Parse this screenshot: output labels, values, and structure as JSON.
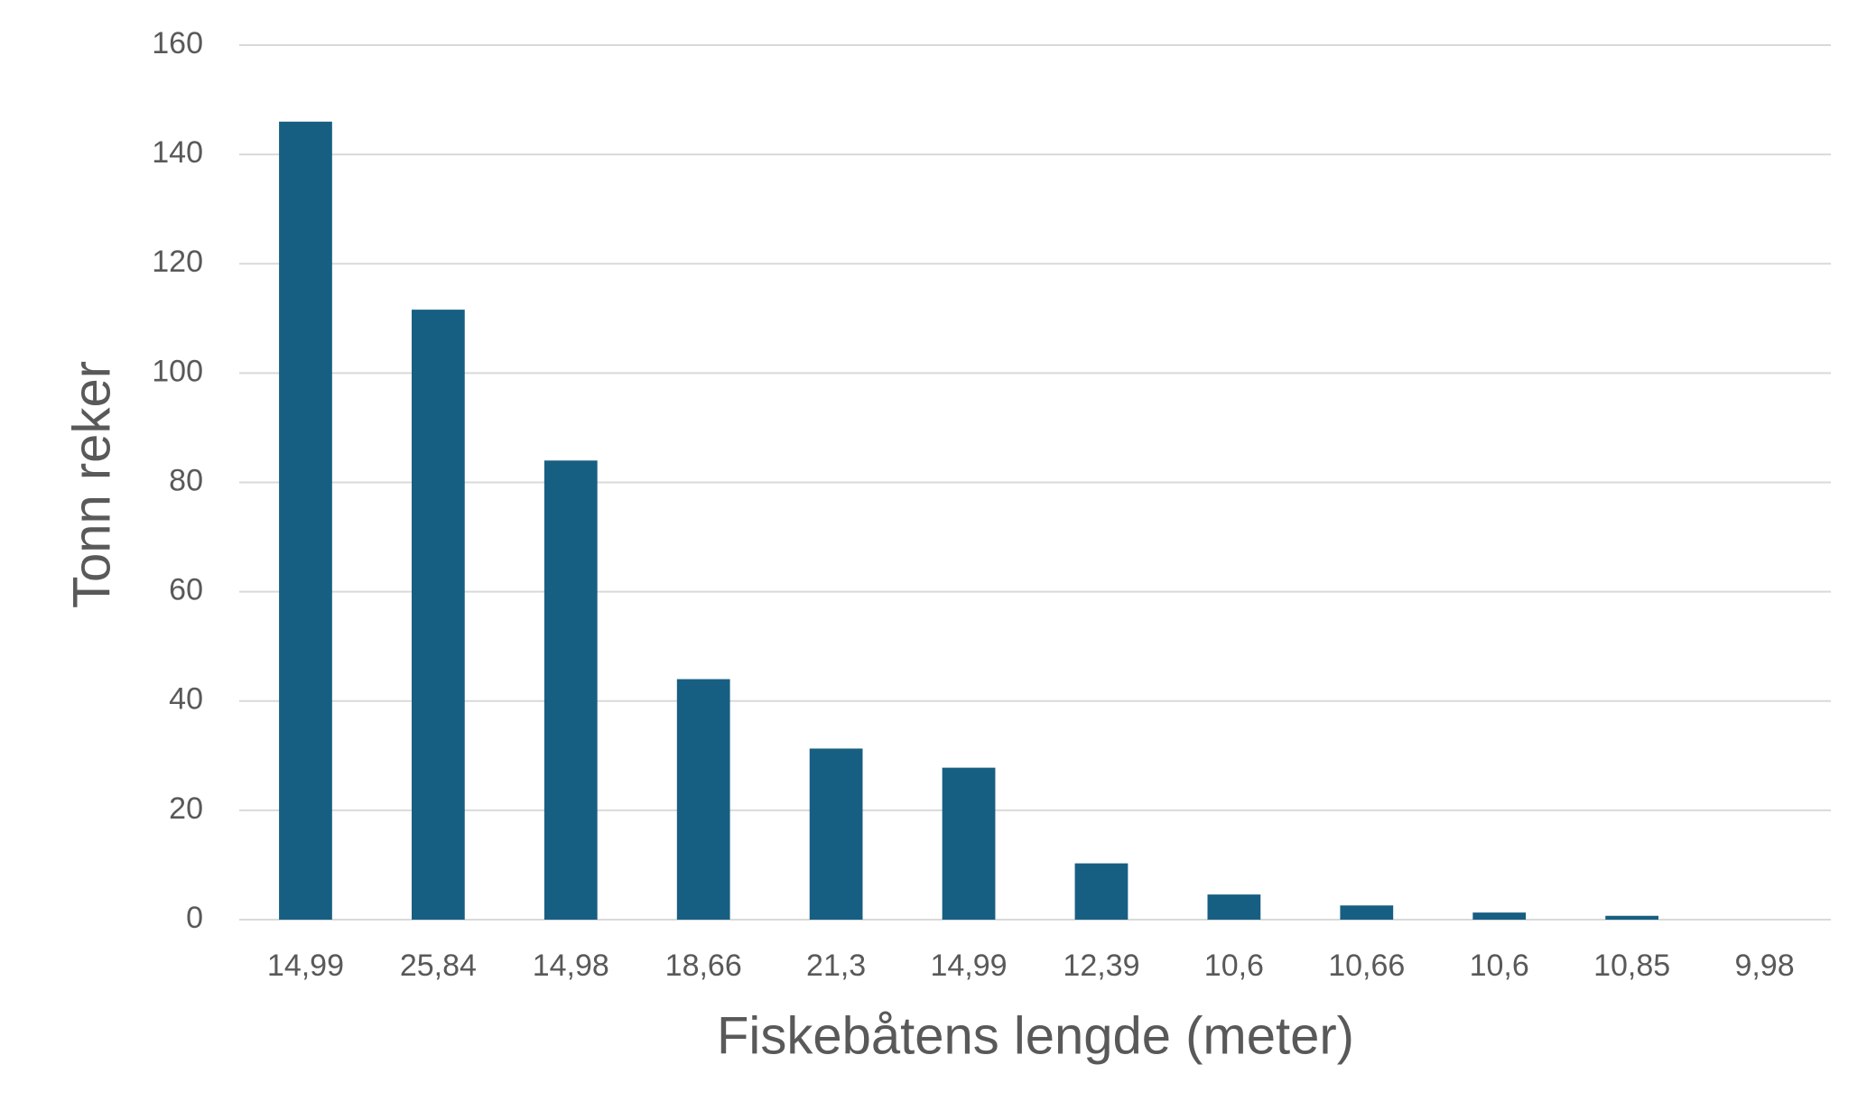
{
  "chart_data": {
    "type": "bar",
    "x_label": "Fiskebåtens lengde (meter)",
    "y_label": "Tonn reker",
    "categories": [
      "14,99",
      "25,84",
      "14,98",
      "18,66",
      "21,3",
      "14,99",
      "12,39",
      "10,6",
      "10,66",
      "10,6",
      "10,85",
      "9,98"
    ],
    "values": [
      146,
      111.6,
      84,
      44,
      31.3,
      27.8,
      10.3,
      4.6,
      2.6,
      1.3,
      0.7,
      0
    ],
    "color": "#175f82",
    "ylim": [
      0,
      160
    ],
    "yticks": [
      0,
      20,
      40,
      60,
      80,
      100,
      120,
      140,
      160
    ],
    "grid": true
  }
}
